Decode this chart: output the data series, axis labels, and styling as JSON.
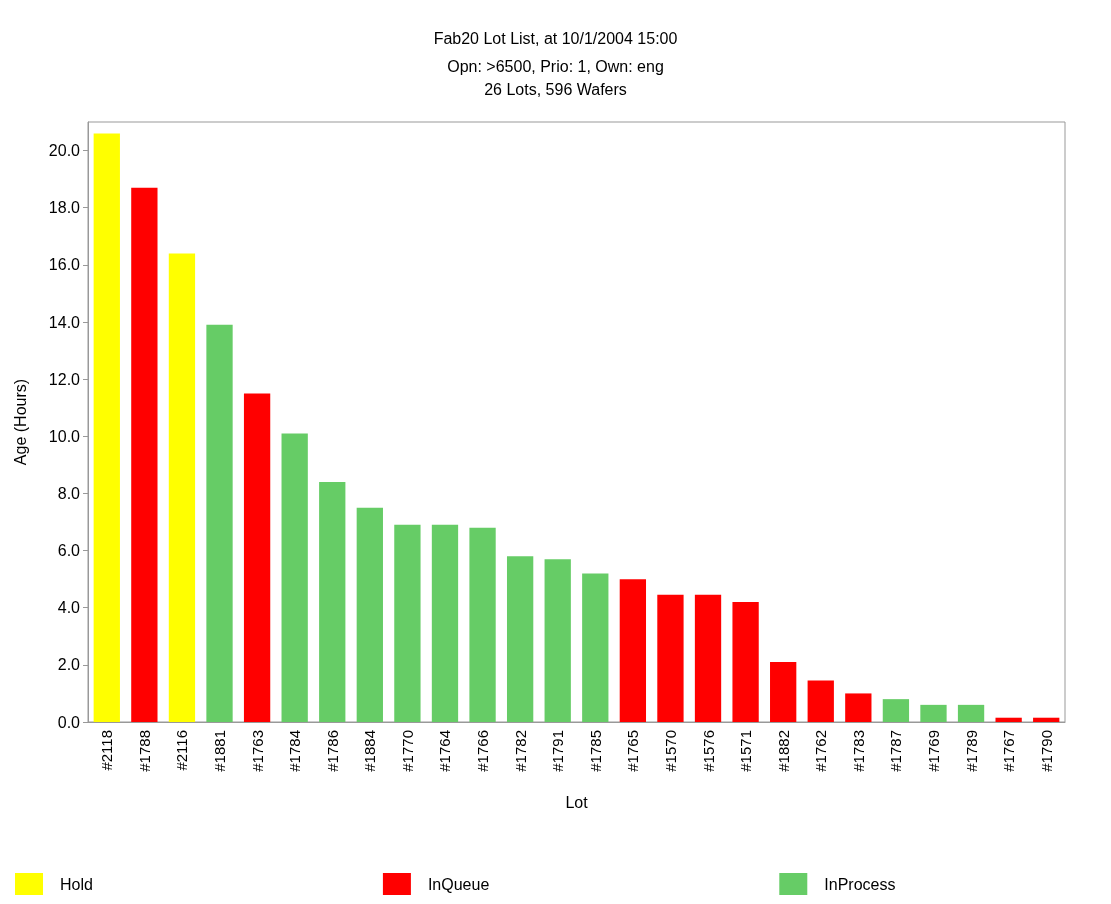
{
  "chart_data": {
    "type": "bar",
    "title": "Fab20 Lot List, at 10/1/2004 15:00",
    "subtitle": "Opn: >6500, Prio: 1, Own: eng\n26 Lots, 596 Wafers",
    "xlabel": "Lot",
    "ylabel": "Age (Hours)",
    "categories": [
      "#2118",
      "#1788",
      "#2116",
      "#1881",
      "#1763",
      "#1784",
      "#1786",
      "#1884",
      "#1770",
      "#1764",
      "#1766",
      "#1782",
      "#1791",
      "#1785",
      "#1765",
      "#1570",
      "#1576",
      "#1571",
      "#1882",
      "#1762",
      "#1783",
      "#1787",
      "#1769",
      "#1789",
      "#1767",
      "#1790"
    ],
    "series": [
      {
        "name": "Hold",
        "color": "#ffff00",
        "values": [
          20.6,
          null,
          16.4,
          null,
          null,
          null,
          null,
          null,
          null,
          null,
          null,
          null,
          null,
          null,
          null,
          null,
          null,
          null,
          null,
          null,
          null,
          null,
          null,
          null,
          null,
          null
        ]
      },
      {
        "name": "InQueue",
        "color": "#ff0000",
        "values": [
          null,
          18.7,
          null,
          null,
          11.5,
          null,
          null,
          null,
          null,
          null,
          null,
          null,
          null,
          null,
          5.0,
          4.45,
          4.45,
          4.2,
          2.1,
          1.45,
          1.0,
          null,
          null,
          null,
          0.15,
          0.15
        ]
      },
      {
        "name": "InProcess",
        "color": "#66cc66",
        "values": [
          null,
          null,
          null,
          13.9,
          null,
          10.1,
          8.4,
          7.5,
          6.9,
          6.9,
          6.8,
          5.8,
          5.7,
          5.2,
          null,
          null,
          null,
          null,
          null,
          null,
          null,
          0.8,
          0.6,
          0.6,
          null,
          null
        ]
      }
    ],
    "ylim": [
      0,
      21
    ],
    "yticks": [
      {
        "value": 0,
        "label": "0.0"
      },
      {
        "value": 2,
        "label": "2.0"
      },
      {
        "value": 4,
        "label": "4.0"
      },
      {
        "value": 6,
        "label": "6.0"
      },
      {
        "value": 8,
        "label": "8.0"
      },
      {
        "value": 10,
        "label": "10.0"
      },
      {
        "value": 12,
        "label": "12.0"
      },
      {
        "value": 14,
        "label": "14.0"
      },
      {
        "value": 16,
        "label": "16.0"
      },
      {
        "value": 18,
        "label": "18.0"
      },
      {
        "value": 20,
        "label": "20.0"
      }
    ],
    "grid": false,
    "legend": "bottom"
  }
}
